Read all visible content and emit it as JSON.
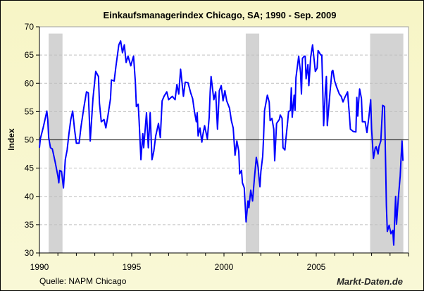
{
  "chart_data": {
    "type": "line",
    "title": "Einkaufsmanagerindex Chicago, SA; 1990 -  Sep. 2009",
    "xlabel": "",
    "ylabel": "Index",
    "xlim": [
      1990,
      2010
    ],
    "ylim": [
      30,
      70
    ],
    "x_ticks": [
      "1990",
      "1995",
      "2000",
      "2005"
    ],
    "y_ticks": [
      "30",
      "35",
      "40",
      "45",
      "50",
      "55",
      "60",
      "65",
      "70"
    ],
    "grid": "horizontal dashed",
    "reference_line": 50,
    "line_color": "#0000ff",
    "recession_color": "#d3d3d3",
    "recessions": [
      [
        1990.5,
        1991.25
      ],
      [
        2001.18,
        2001.91
      ],
      [
        2007.92,
        2009.72
      ]
    ],
    "series": [
      {
        "x": [
          1990.0,
          1990.05,
          1990.2,
          1990.3,
          1990.4,
          1990.45,
          1990.5,
          1990.6,
          1990.7,
          1990.85,
          1991.0,
          1991.05,
          1991.1,
          1991.2,
          1991.3,
          1991.4,
          1991.5,
          1991.6,
          1991.7,
          1991.8,
          1991.9,
          1992.0,
          1992.15,
          1992.25,
          1992.4,
          1992.55,
          1992.65,
          1992.75,
          1992.85,
          1992.9,
          1993.05,
          1993.2,
          1993.25,
          1993.35,
          1993.5,
          1993.6,
          1993.7,
          1993.85,
          1993.9,
          1994.05,
          1994.15,
          1994.3,
          1994.4,
          1994.5,
          1994.6,
          1994.7,
          1994.8,
          1994.95,
          1995.0,
          1995.1,
          1995.2,
          1995.25,
          1995.35,
          1995.4,
          1995.5,
          1995.6,
          1995.65,
          1995.8,
          1995.9,
          1996.0,
          1996.1,
          1996.2,
          1996.3,
          1996.45,
          1996.55,
          1996.65,
          1996.75,
          1996.9,
          1997.0,
          1997.2,
          1997.35,
          1997.45,
          1997.55,
          1997.65,
          1997.7,
          1997.8,
          1997.9,
          1998.05,
          1998.2,
          1998.3,
          1998.4,
          1998.5,
          1998.55,
          1998.6,
          1998.7,
          1998.8,
          1998.85,
          1998.95,
          1999.1,
          1999.2,
          1999.25,
          1999.3,
          1999.45,
          1999.55,
          1999.65,
          1999.75,
          1999.85,
          1999.95,
          2000.05,
          2000.15,
          2000.3,
          2000.4,
          2000.5,
          2000.6,
          2000.7,
          2000.8,
          2000.85,
          2000.95,
          2001.0,
          2001.1,
          2001.2,
          2001.3,
          2001.35,
          2001.45,
          2001.55,
          2001.65,
          2001.75,
          2001.85,
          2001.9,
          2001.95,
          2002.0,
          2002.1,
          2002.15,
          2002.2,
          2002.35,
          2002.45,
          2002.5,
          2002.6,
          2002.7,
          2002.75,
          2002.85,
          2003.0,
          2003.05,
          2003.15,
          2003.2,
          2003.3,
          2003.35,
          2003.45,
          2003.5,
          2003.6,
          2003.65,
          2003.7,
          2003.8,
          2003.85,
          2003.9,
          2004.05,
          2004.15,
          2004.2,
          2004.25,
          2004.35,
          2004.4,
          2004.45,
          2004.55,
          2004.6,
          2004.7,
          2004.8,
          2004.9,
          2004.95,
          2005.05,
          2005.1,
          2005.25,
          2005.3,
          2005.35,
          2005.4,
          2005.5,
          2005.55,
          2005.6,
          2005.7,
          2005.75,
          2005.85,
          2005.9,
          2006.0,
          2006.1,
          2006.25,
          2006.35,
          2006.45,
          2006.55,
          2006.7,
          2006.8,
          2006.85,
          2007.0,
          2007.15,
          2007.2,
          2007.25,
          2007.3,
          2007.35,
          2007.45,
          2007.5,
          2007.65,
          2007.75,
          2007.85,
          2007.95,
          2008.0,
          2008.1,
          2008.2,
          2008.25,
          2008.35,
          2008.4,
          2008.5,
          2008.6,
          2008.7,
          2008.75,
          2008.8,
          2008.85,
          2008.95,
          2009.05,
          2009.15,
          2009.2,
          2009.3,
          2009.35,
          2009.45,
          2009.55,
          2009.6,
          2009.65,
          2009.7
        ],
        "values": [
          48.6,
          50.2,
          52.1,
          53.6,
          55.1,
          53.6,
          50.4,
          48.6,
          48.4,
          46.1,
          43.6,
          42.4,
          44.6,
          44.4,
          41.5,
          46.5,
          48.2,
          51.1,
          53.6,
          55.1,
          51.9,
          49.4,
          49.4,
          52.3,
          55.6,
          58.5,
          58.3,
          49.8,
          54.8,
          57.3,
          62.1,
          61.2,
          56.5,
          53.2,
          53.6,
          52.1,
          54.0,
          57.3,
          60.6,
          60.4,
          63.1,
          66.8,
          67.5,
          65.4,
          66.8,
          63.7,
          64.8,
          63.1,
          63.7,
          64.8,
          60.2,
          55.9,
          56.3,
          53.4,
          46.5,
          51.1,
          48.6,
          54.8,
          48.6,
          54.8,
          46.5,
          48.0,
          50.7,
          52.9,
          50.4,
          56.9,
          57.7,
          58.5,
          57.1,
          57.7,
          57.1,
          59.8,
          58.1,
          62.5,
          61.0,
          57.7,
          60.2,
          60.1,
          58.3,
          57.3,
          55.0,
          53.2,
          54.8,
          50.7,
          52.1,
          49.6,
          50.8,
          52.5,
          50.2,
          54.0,
          58.5,
          61.2,
          57.1,
          58.5,
          51.9,
          58.7,
          59.6,
          56.9,
          58.7,
          56.9,
          55.6,
          53.4,
          52.1,
          47.3,
          49.8,
          48.0,
          44.0,
          44.6,
          42.4,
          41.5,
          35.5,
          39.2,
          38.0,
          41.1,
          39.2,
          43.2,
          46.9,
          45.1,
          43.2,
          41.7,
          44.4,
          47.1,
          50.7,
          55.2,
          57.9,
          56.7,
          53.4,
          53.8,
          51.9,
          46.3,
          52.9,
          53.6,
          54.4,
          53.8,
          48.6,
          48.2,
          50.0,
          53.2,
          55.0,
          55.2,
          59.2,
          54.0,
          57.9,
          55.2,
          61.0,
          64.8,
          61.9,
          58.1,
          64.4,
          64.8,
          64.8,
          60.8,
          63.3,
          59.6,
          64.6,
          66.8,
          63.7,
          62.1,
          62.7,
          65.8,
          65.0,
          65.0,
          59.0,
          52.5,
          59.0,
          61.2,
          52.5,
          56.5,
          58.5,
          62.1,
          62.3,
          60.4,
          59.4,
          58.1,
          57.7,
          56.7,
          57.5,
          58.5,
          54.2,
          51.9,
          51.5,
          51.4,
          57.5,
          54.2,
          56.9,
          59.0,
          57.3,
          53.2,
          53.2,
          51.3,
          54.0,
          57.1,
          51.9,
          46.7,
          48.6,
          48.8,
          47.5,
          48.8,
          49.8,
          56.1,
          55.9,
          47.1,
          38.4,
          33.8,
          34.9,
          33.4,
          34.0,
          31.4,
          40.0,
          35.1,
          39.8,
          43.6,
          46.9,
          49.8,
          46.3
        ]
      }
    ]
  },
  "footer": {
    "source": "Quelle: NAPM Chicago",
    "brand": "Markt-Daten.de"
  }
}
